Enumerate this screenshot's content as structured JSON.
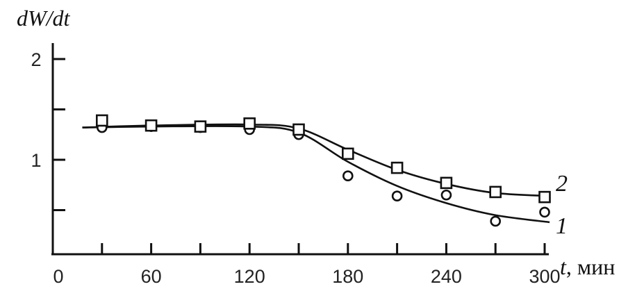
{
  "chart_data": {
    "type": "scatter",
    "title": "",
    "ylabel": "dW/dt",
    "xlabel_var": "t",
    "xlabel_unit": ", мин",
    "xlim": [
      0,
      303
    ],
    "ylim": [
      0.06,
      2.16
    ],
    "x_ticks": [
      0,
      60,
      120,
      180,
      240,
      300
    ],
    "x_minor_ticks": [
      30,
      60,
      90,
      120,
      150,
      180,
      210,
      240,
      270,
      300
    ],
    "y_ticks": [
      0.5,
      1,
      1.5,
      2
    ],
    "y_tick_labels": {
      "1": "1",
      "2": "2"
    },
    "grid": false,
    "series": [
      {
        "name": "1",
        "marker": "circle",
        "x": [
          30,
          60,
          90,
          120,
          150,
          180,
          210,
          240,
          270,
          300
        ],
        "y": [
          1.32,
          1.33,
          1.32,
          1.3,
          1.25,
          0.84,
          0.64,
          0.65,
          0.39,
          0.48
        ],
        "fit_x": [
          18,
          60,
          120,
          150,
          180,
          210,
          240,
          270,
          303
        ],
        "fit_y": [
          1.32,
          1.33,
          1.33,
          1.27,
          0.98,
          0.74,
          0.57,
          0.45,
          0.38
        ]
      },
      {
        "name": "2",
        "marker": "square",
        "x": [
          30,
          60,
          90,
          120,
          150,
          180,
          210,
          240,
          270,
          300
        ],
        "y": [
          1.39,
          1.34,
          1.33,
          1.36,
          1.3,
          1.06,
          0.92,
          0.77,
          0.68,
          0.63
        ],
        "fit_x": [
          18,
          60,
          120,
          150,
          180,
          210,
          240,
          270,
          303
        ],
        "fit_y": [
          1.32,
          1.34,
          1.35,
          1.31,
          1.1,
          0.9,
          0.76,
          0.67,
          0.64
        ]
      }
    ]
  }
}
